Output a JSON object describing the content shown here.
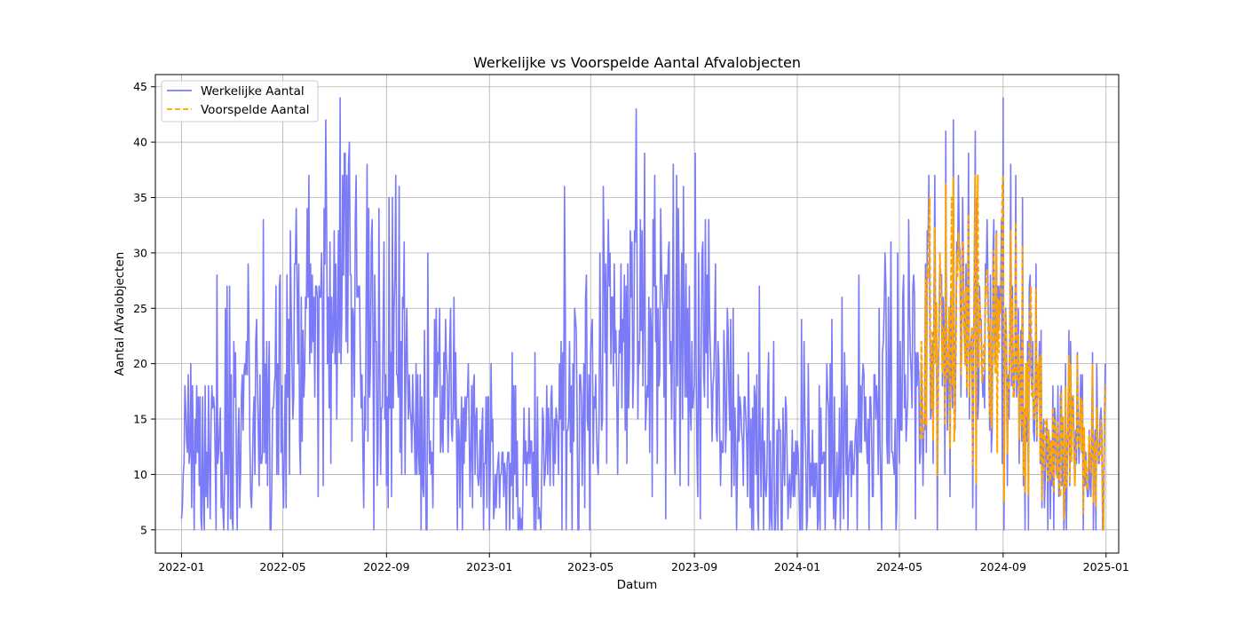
{
  "chart_data": {
    "type": "line",
    "title": "Werkelijke vs Voorspelde Aantal Afvalobjecten",
    "xlabel": "Datum",
    "ylabel": "Aantal Afvalobjecten",
    "x_axis_type": "date",
    "xlim": [
      "2021-12-01",
      "2025-01-16"
    ],
    "ylim": [
      2.9,
      46.1
    ],
    "x_ticks": [
      "2022-01",
      "2022-05",
      "2022-09",
      "2023-01",
      "2023-05",
      "2023-09",
      "2024-01",
      "2024-05",
      "2024-09",
      "2025-01"
    ],
    "y_ticks": [
      5,
      10,
      15,
      20,
      25,
      30,
      35,
      40,
      45
    ],
    "grid": true,
    "legend_position": "top-left",
    "series": [
      {
        "name": "Werkelijke Aantal",
        "color": "#7b7bf7",
        "style": "solid",
        "x_start": "2022-01-01",
        "x_end": "2024-12-31",
        "frequency": "daily",
        "trend_keypoints": [
          [
            "2022-01-01",
            12
          ],
          [
            "2022-02-15",
            13
          ],
          [
            "2022-04-01",
            16
          ],
          [
            "2022-06-01",
            22
          ],
          [
            "2022-07-15",
            24
          ],
          [
            "2022-09-01",
            20
          ],
          [
            "2022-11-01",
            15
          ],
          [
            "2023-01-01",
            11
          ],
          [
            "2023-02-15",
            12
          ],
          [
            "2023-04-01",
            15
          ],
          [
            "2023-06-01",
            21
          ],
          [
            "2023-07-15",
            23
          ],
          [
            "2023-09-01",
            20
          ],
          [
            "2023-11-01",
            14
          ],
          [
            "2024-01-01",
            11
          ],
          [
            "2024-02-15",
            12
          ],
          [
            "2024-04-01",
            16
          ],
          [
            "2024-06-01",
            22
          ],
          [
            "2024-07-15",
            24
          ],
          [
            "2024-09-01",
            21
          ],
          [
            "2024-11-01",
            15
          ],
          [
            "2024-12-31",
            11
          ]
        ],
        "peaks": [
          [
            "2022-06-21",
            42
          ],
          [
            "2022-07-16",
            37
          ],
          [
            "2022-06-01",
            37
          ],
          [
            "2022-09-08",
            35
          ],
          [
            "2023-03-31",
            36
          ],
          [
            "2023-07-04",
            39
          ],
          [
            "2023-08-07",
            38
          ],
          [
            "2023-09-02",
            39
          ],
          [
            "2024-06-05",
            37
          ],
          [
            "2024-06-25",
            41
          ],
          [
            "2024-07-30",
            41
          ],
          [
            "2024-09-01",
            44
          ],
          [
            "2024-09-10",
            38
          ]
        ],
        "troughs": [
          [
            "2022-03-08",
            5
          ],
          [
            "2023-01-01",
            5
          ],
          [
            "2023-02-05",
            5
          ],
          [
            "2023-12-05",
            5
          ],
          [
            "2024-01-05",
            5
          ],
          [
            "2024-02-15",
            5
          ],
          [
            "2024-03-01",
            5
          ],
          [
            "2024-12-05",
            5
          ],
          [
            "2024-12-28",
            5
          ]
        ],
        "min": 5,
        "max": 44
      },
      {
        "name": "Voorspelde Aantal",
        "color": "#ffa500",
        "style": "dashed",
        "x_start": "2024-05-25",
        "x_end": "2024-12-31",
        "frequency": "daily",
        "peaks": [
          [
            "2024-06-06",
            35
          ],
          [
            "2024-07-02",
            35
          ],
          [
            "2024-08-02",
            37
          ],
          [
            "2024-08-31",
            36
          ],
          [
            "2024-09-10",
            32
          ],
          [
            "2024-10-04",
            27
          ]
        ],
        "troughs": [
          [
            "2024-07-05",
            13
          ],
          [
            "2024-08-25",
            12
          ],
          [
            "2024-11-08",
            8
          ],
          [
            "2024-12-29",
            5
          ]
        ],
        "min": 5,
        "max": 37
      }
    ]
  }
}
